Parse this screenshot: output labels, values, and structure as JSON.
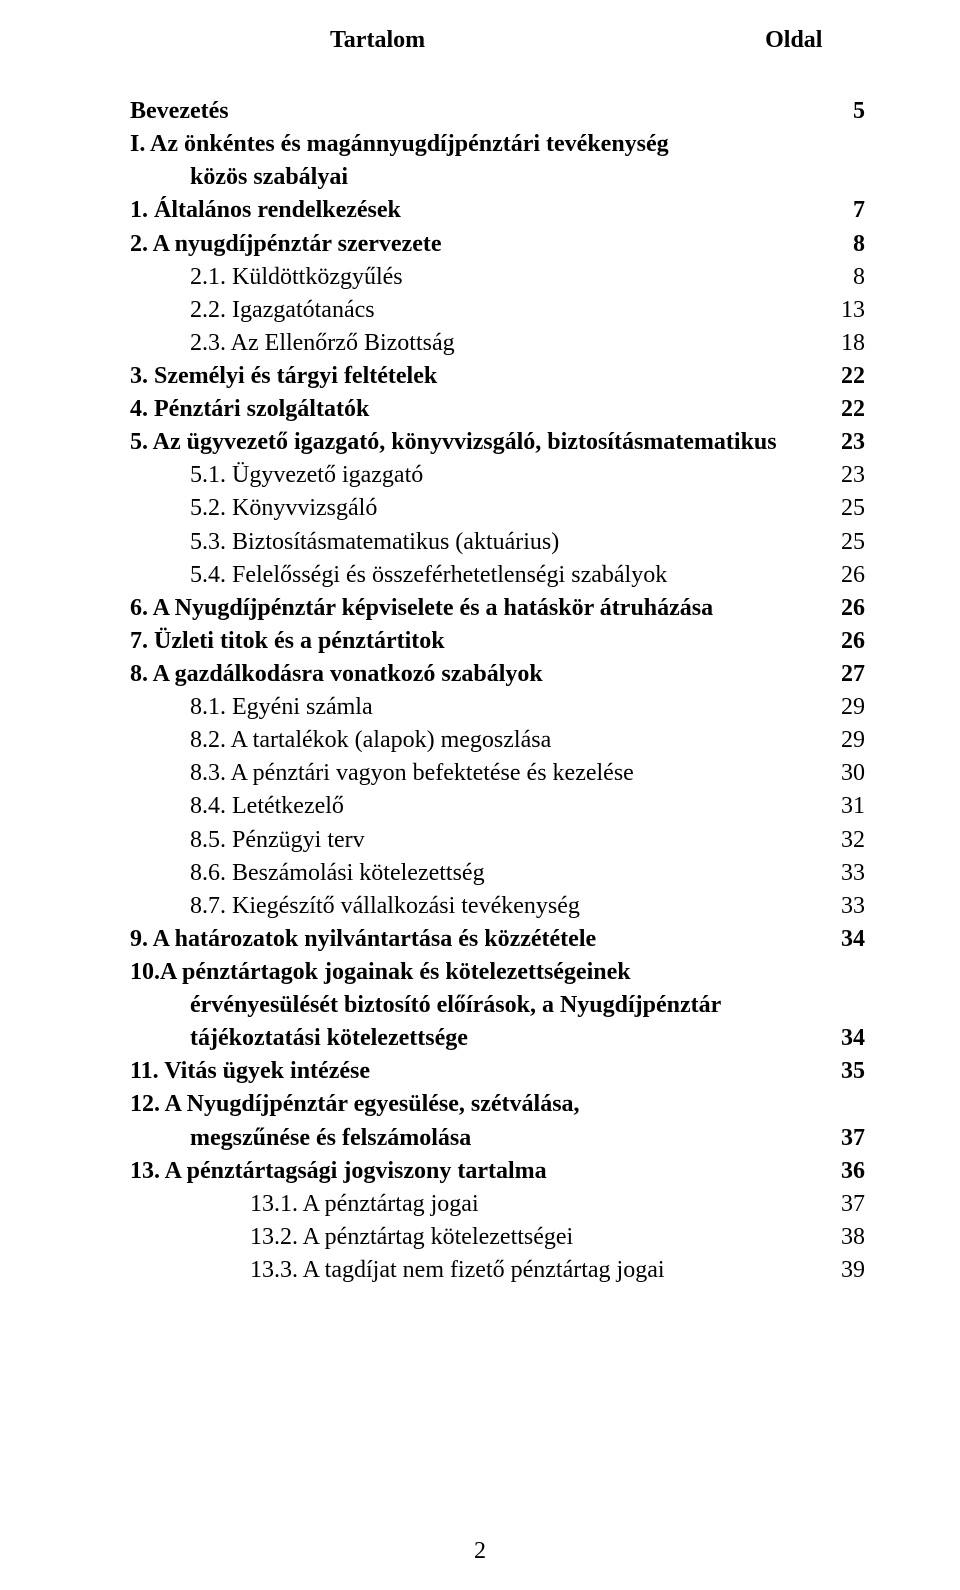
{
  "header": {
    "left": "Tartalom",
    "right": "Oldal"
  },
  "font": {
    "family": "Times New Roman",
    "size_pt": 18
  },
  "colors": {
    "text": "#000000",
    "background": "#ffffff"
  },
  "page_number": "2",
  "toc": [
    {
      "lines": [
        "Bevezetés"
      ],
      "page": "5",
      "bold": true,
      "indent": 0
    },
    {
      "lines": [
        "I.   Az önkéntes és magánnyugdíjpénztári tevékenység",
        "közös szabályai"
      ],
      "page": "",
      "bold": true,
      "indent": 0,
      "cont_indent": 1
    },
    {
      "lines": [
        "1. Általános rendelkezések"
      ],
      "page": "7",
      "bold": true,
      "indent": 0
    },
    {
      "lines": [
        "2. A nyugdíjpénztár szervezete"
      ],
      "page": "8",
      "bold": true,
      "indent": 0
    },
    {
      "lines": [
        "2.1. Küldöttközgyűlés"
      ],
      "page": "8",
      "bold": false,
      "indent": 1
    },
    {
      "lines": [
        "2.2. Igazgatótanács"
      ],
      "page": "13",
      "bold": false,
      "indent": 1
    },
    {
      "lines": [
        "2.3. Az Ellenőrző Bizottság"
      ],
      "page": "18",
      "bold": false,
      "indent": 1
    },
    {
      "lines": [
        "3. Személyi és tárgyi feltételek"
      ],
      "page": "22",
      "bold": true,
      "indent": 0
    },
    {
      "lines": [
        "4. Pénztári szolgáltatók"
      ],
      "page": "22",
      "bold": true,
      "indent": 0
    },
    {
      "lines": [
        "5. Az ügyvezető igazgató, könyvvizsgáló, biztosításmatematikus"
      ],
      "page": "23",
      "bold": true,
      "indent": 0
    },
    {
      "lines": [
        "5.1. Ügyvezető igazgató"
      ],
      "page": "23",
      "bold": false,
      "indent": 1
    },
    {
      "lines": [
        "5.2. Könyvvizsgáló"
      ],
      "page": "25",
      "bold": false,
      "indent": 1
    },
    {
      "lines": [
        "5.3. Biztosításmatematikus (aktuárius)"
      ],
      "page": "25",
      "bold": false,
      "indent": 1
    },
    {
      "lines": [
        "5.4. Felelősségi és összeférhetetlenségi szabályok"
      ],
      "page": "26",
      "bold": false,
      "indent": 1
    },
    {
      "lines": [
        "6. A Nyugdíjpénztár képviselete és a hatáskör átruházása"
      ],
      "page": "26",
      "bold": true,
      "indent": 0
    },
    {
      "lines": [
        "7. Üzleti titok és a pénztártitok"
      ],
      "page": "26",
      "bold": true,
      "indent": 0
    },
    {
      "lines": [
        "8. A gazdálkodásra vonatkozó szabályok"
      ],
      "page": "27",
      "bold": true,
      "indent": 0
    },
    {
      "lines": [
        "8.1. Egyéni számla"
      ],
      "page": "29",
      "bold": false,
      "indent": 1
    },
    {
      "lines": [
        "8.2. A tartalékok (alapok) megoszlása"
      ],
      "page": "29",
      "bold": false,
      "indent": 1
    },
    {
      "lines": [
        "8.3. A pénztári vagyon befektetése és kezelése"
      ],
      "page": "30",
      "bold": false,
      "indent": 1
    },
    {
      "lines": [
        "8.4. Letétkezelő"
      ],
      "page": "31",
      "bold": false,
      "indent": 1
    },
    {
      "lines": [
        "8.5. Pénzügyi terv"
      ],
      "page": "32",
      "bold": false,
      "indent": 1
    },
    {
      "lines": [
        "8.6. Beszámolási kötelezettség"
      ],
      "page": "33",
      "bold": false,
      "indent": 1
    },
    {
      "lines": [
        "8.7. Kiegészítő vállalkozási tevékenység"
      ],
      "page": "33",
      "bold": false,
      "indent": 1
    },
    {
      "lines": [
        "9. A határozatok nyilvántartása és közzététele"
      ],
      "page": "34",
      "bold": true,
      "indent": 0
    },
    {
      "lines": [
        "10.A pénztártagok jogainak és kötelezettségeinek",
        "érvényesülését biztosító előírások, a Nyugdíjpénztár",
        "tájékoztatási kötelezettsége"
      ],
      "page": "34",
      "bold": true,
      "indent": 0,
      "cont_indent": 1
    },
    {
      "lines": [
        "11. Vitás ügyek intézése"
      ],
      "page": "35",
      "bold": true,
      "indent": 0
    },
    {
      "lines": [
        "12.   A Nyugdíjpénztár egyesülése, szétválása,",
        "megszűnése és felszámolása"
      ],
      "page": "37",
      "bold": true,
      "indent": 0,
      "cont_indent": 1
    },
    {
      "lines": [
        "13.    A pénztártagsági jogviszony tartalma"
      ],
      "page": "36",
      "bold": true,
      "indent": 0
    },
    {
      "lines": [
        "13.1.    A pénztártag jogai"
      ],
      "page": "37",
      "bold": false,
      "indent": 2
    },
    {
      "lines": [
        "13.2.    A pénztártag kötelezettségei"
      ],
      "page": "38",
      "bold": false,
      "indent": 2
    },
    {
      "lines": [
        "13.3.    A tagdíjat nem fizető pénztártag jogai"
      ],
      "page": "39",
      "bold": false,
      "indent": 2
    }
  ]
}
